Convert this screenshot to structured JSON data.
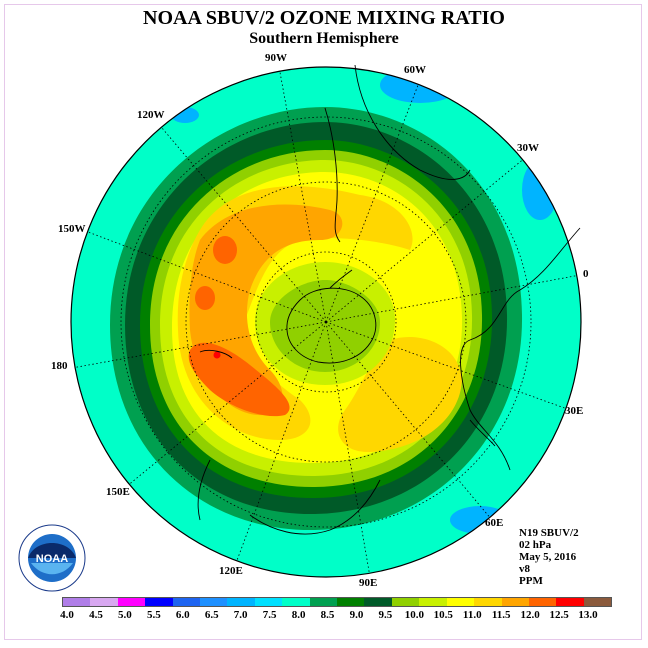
{
  "title": "NOAA SBUV/2 OZONE MIXING RATIO",
  "subtitle": "Southern Hemisphere",
  "longitude_labels": [
    {
      "id": "lon-90w",
      "text": "90W"
    },
    {
      "id": "lon-60w",
      "text": "60W"
    },
    {
      "id": "lon-30w",
      "text": "30W"
    },
    {
      "id": "lon-0",
      "text": "0"
    },
    {
      "id": "lon-30e",
      "text": "30E"
    },
    {
      "id": "lon-60e",
      "text": "60E"
    },
    {
      "id": "lon-90e",
      "text": "90E"
    },
    {
      "id": "lon-120e",
      "text": "120E"
    },
    {
      "id": "lon-150e",
      "text": "150E"
    },
    {
      "id": "lon-180",
      "text": "180"
    },
    {
      "id": "lon-150w",
      "text": "150W"
    },
    {
      "id": "lon-120w",
      "text": "120W"
    }
  ],
  "info": {
    "satellite": "N19 SBUV/2",
    "level": "02 hPa",
    "date": "May 5, 2016",
    "version": "v8",
    "units": "PPM"
  },
  "logo_text": "NOAA",
  "colorbar": {
    "colors": [
      "#b07ee8",
      "#d8a8f0",
      "#ff00ff",
      "#0000ff",
      "#1e64f0",
      "#1e90ff",
      "#00b4ff",
      "#00e0ff",
      "#00ffc8",
      "#00a050",
      "#008000",
      "#005a28",
      "#90d000",
      "#c8f000",
      "#ffff00",
      "#ffd700",
      "#ffa500",
      "#ff6400",
      "#ff0000",
      "#8b5a3c"
    ],
    "ticks": [
      "4.0",
      "4.5",
      "5.0",
      "5.5",
      "6.0",
      "6.5",
      "7.0",
      "7.5",
      "8.0",
      "8.5",
      "9.0",
      "9.5",
      "10.0",
      "10.5",
      "11.0",
      "11.5",
      "12.0",
      "12.5",
      "13.0"
    ]
  }
}
